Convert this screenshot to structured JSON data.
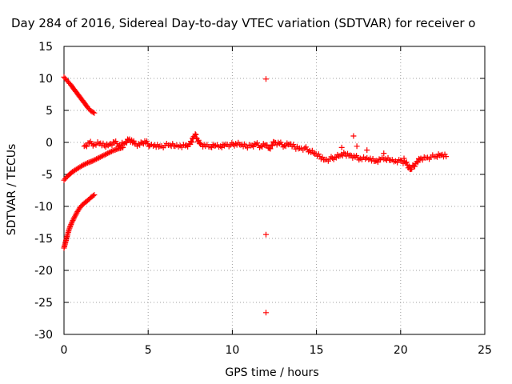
{
  "chart_data": {
    "type": "scatter",
    "title": "Day 284 of 2016, Sidereal Day-to-day VTEC variation (SDTVAR) for receiver o",
    "xlabel": "GPS time / hours",
    "ylabel": "SDTVAR / TECUs",
    "xlim": [
      0,
      25
    ],
    "ylim": [
      -30,
      15
    ],
    "xticks": [
      0,
      5,
      10,
      15,
      20,
      25
    ],
    "yticks": [
      15,
      10,
      5,
      0,
      -5,
      -10,
      -15,
      -20,
      -25,
      -30
    ],
    "grid": true,
    "marker": "+",
    "colors": {
      "series": "#ff0000",
      "grid": "#a0a0a0",
      "axis": "#000000"
    },
    "series": [
      {
        "name": "SDTVAR",
        "segments": [
          {
            "label": "upper decreasing track",
            "points": [
              [
                0.0,
                10.2
              ],
              [
                0.2,
                9.6
              ],
              [
                0.4,
                9.0
              ],
              [
                0.6,
                8.3
              ],
              [
                0.8,
                7.6
              ],
              [
                1.0,
                6.9
              ],
              [
                1.2,
                6.2
              ],
              [
                1.4,
                5.5
              ],
              [
                1.6,
                4.9
              ],
              [
                1.8,
                4.6
              ]
            ]
          },
          {
            "label": "lower increasing track",
            "points": [
              [
                0.0,
                -16.5
              ],
              [
                0.1,
                -15.5
              ],
              [
                0.2,
                -14.5
              ],
              [
                0.3,
                -13.6
              ],
              [
                0.45,
                -12.6
              ],
              [
                0.6,
                -11.8
              ],
              [
                0.8,
                -10.8
              ],
              [
                1.0,
                -10.0
              ],
              [
                1.2,
                -9.5
              ],
              [
                1.4,
                -9.1
              ],
              [
                1.6,
                -8.6
              ],
              [
                1.8,
                -8.2
              ]
            ]
          },
          {
            "label": "near-zero rising track",
            "points": [
              [
                0.0,
                -5.9
              ],
              [
                0.2,
                -5.3
              ],
              [
                0.5,
                -4.6
              ],
              [
                0.8,
                -4.1
              ],
              [
                1.1,
                -3.6
              ],
              [
                1.4,
                -3.2
              ],
              [
                1.7,
                -2.9
              ],
              [
                2.0,
                -2.5
              ],
              [
                2.3,
                -2.1
              ],
              [
                2.6,
                -1.7
              ],
              [
                2.9,
                -1.3
              ],
              [
                3.2,
                -1.0
              ],
              [
                3.5,
                -0.8
              ]
            ]
          },
          {
            "label": "main band",
            "points": [
              [
                1.2,
                -0.6
              ],
              [
                1.5,
                -0.1
              ],
              [
                1.8,
                -0.3
              ],
              [
                2.1,
                -0.2
              ],
              [
                2.4,
                -0.5
              ],
              [
                2.7,
                -0.3
              ],
              [
                3.0,
                0.0
              ],
              [
                3.3,
                -0.4
              ],
              [
                3.6,
                -0.2
              ],
              [
                3.9,
                0.5
              ],
              [
                4.2,
                -0.2
              ],
              [
                4.5,
                -0.4
              ],
              [
                4.8,
                0.2
              ],
              [
                5.1,
                -0.5
              ],
              [
                5.4,
                -0.4
              ],
              [
                5.7,
                -0.6
              ],
              [
                6.0,
                -0.5
              ],
              [
                6.3,
                -0.4
              ],
              [
                6.6,
                -0.6
              ],
              [
                6.9,
                -0.5
              ],
              [
                7.2,
                -0.5
              ],
              [
                7.5,
                -0.3
              ],
              [
                7.7,
                0.9
              ],
              [
                7.8,
                1.3
              ],
              [
                7.9,
                0.6
              ],
              [
                8.1,
                -0.2
              ],
              [
                8.4,
                -0.6
              ],
              [
                8.7,
                -0.7
              ],
              [
                9.0,
                -0.5
              ],
              [
                9.3,
                -0.6
              ],
              [
                9.6,
                -0.3
              ],
              [
                9.9,
                -0.4
              ],
              [
                10.2,
                -0.2
              ],
              [
                10.5,
                -0.4
              ],
              [
                10.8,
                -0.6
              ],
              [
                11.1,
                -0.5
              ],
              [
                11.4,
                -0.3
              ],
              [
                11.7,
                -0.6
              ],
              [
                12.0,
                -0.4
              ],
              [
                12.2,
                -0.9
              ],
              [
                12.5,
                0.0
              ],
              [
                12.8,
                -0.2
              ],
              [
                13.1,
                -0.5
              ],
              [
                13.4,
                -0.3
              ],
              [
                13.7,
                -0.7
              ],
              [
                14.0,
                -0.9
              ],
              [
                14.3,
                -0.9
              ],
              [
                14.6,
                -1.3
              ],
              [
                14.9,
                -1.8
              ],
              [
                15.2,
                -2.2
              ],
              [
                15.5,
                -2.7
              ],
              [
                15.8,
                -2.6
              ],
              [
                16.1,
                -2.3
              ],
              [
                16.4,
                -2.1
              ],
              [
                16.7,
                -1.8
              ],
              [
                17.0,
                -2.0
              ],
              [
                17.3,
                -2.3
              ],
              [
                17.6,
                -2.5
              ],
              [
                17.9,
                -2.6
              ],
              [
                18.2,
                -2.5
              ],
              [
                18.5,
                -2.9
              ],
              [
                18.8,
                -2.7
              ],
              [
                19.1,
                -2.6
              ],
              [
                19.4,
                -2.8
              ],
              [
                19.7,
                -2.9
              ],
              [
                20.0,
                -2.8
              ],
              [
                20.3,
                -3.2
              ],
              [
                20.6,
                -4.2
              ],
              [
                20.9,
                -3.3
              ],
              [
                21.2,
                -2.5
              ],
              [
                21.5,
                -2.4
              ],
              [
                21.8,
                -2.3
              ],
              [
                22.1,
                -2.2
              ],
              [
                22.4,
                -2.0
              ],
              [
                22.7,
                -2.2
              ]
            ]
          },
          {
            "label": "band spikes",
            "points": [
              [
                16.5,
                -0.8
              ],
              [
                17.2,
                1.0
              ],
              [
                17.4,
                -0.6
              ],
              [
                18.0,
                -1.2
              ],
              [
                19.0,
                -1.7
              ],
              [
                20.2,
                -2.5
              ]
            ]
          },
          {
            "label": "isolated points",
            "points": [
              [
                12.0,
                9.9
              ],
              [
                12.0,
                -14.4
              ],
              [
                12.0,
                -26.6
              ]
            ]
          }
        ]
      }
    ]
  }
}
